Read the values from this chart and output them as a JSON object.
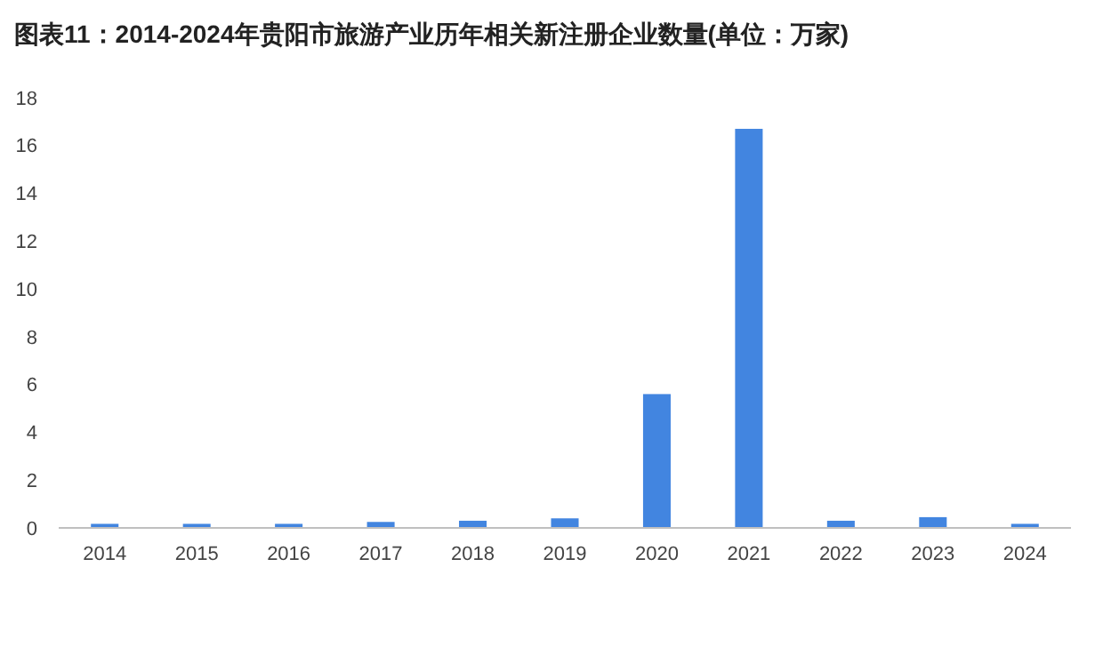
{
  "chart_data": {
    "type": "bar",
    "title": "图表11：2014-2024年贵阳市旅游产业历年相关新注册企业数量(单位：万家)",
    "categories": [
      "2014",
      "2015",
      "2016",
      "2017",
      "2018",
      "2019",
      "2020",
      "2021",
      "2022",
      "2023",
      "2024"
    ],
    "values": [
      0.17,
      0.17,
      0.17,
      0.25,
      0.3,
      0.4,
      5.6,
      16.7,
      0.3,
      0.45,
      0.17
    ],
    "color": "#4285e0",
    "ylim": [
      0,
      18
    ],
    "yticks": [
      0,
      2,
      4,
      6,
      8,
      10,
      12,
      14,
      16,
      18
    ],
    "grid": false
  }
}
